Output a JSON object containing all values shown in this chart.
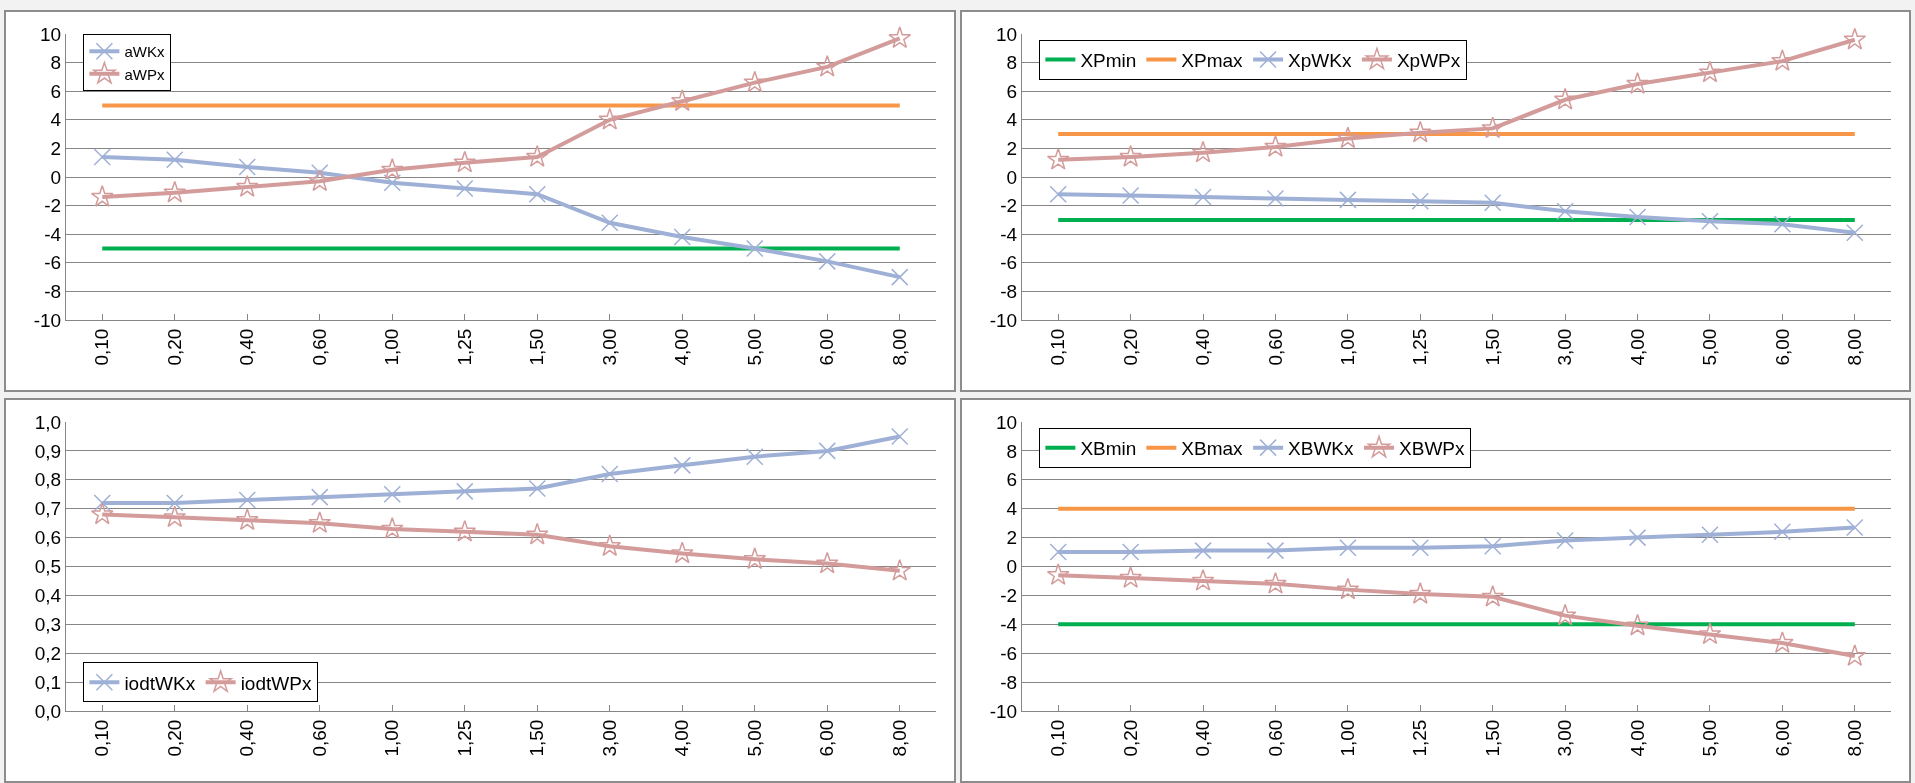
{
  "chart_data": [
    {
      "type": "line",
      "categories": [
        "0,10",
        "0,20",
        "0,40",
        "0,60",
        "1,00",
        "1,25",
        "1,50",
        "3,00",
        "4,00",
        "5,00",
        "6,00",
        "8,00"
      ],
      "ylim": [
        -10,
        10
      ],
      "yticks": [
        -10,
        -8,
        -6,
        -4,
        -2,
        0,
        2,
        4,
        6,
        8,
        10
      ],
      "grid": "y",
      "legend": "top left",
      "line_style": "solid",
      "series": [
        {
          "name": "aWKx",
          "color": "#9fb0d6",
          "marker": "cross",
          "values": [
            1.4,
            1.2,
            0.7,
            0.3,
            -0.4,
            -0.8,
            -1.2,
            -3.2,
            -4.2,
            -5.0,
            -5.9,
            -7.0
          ]
        },
        {
          "name": "aWPx",
          "color": "#d49b9b",
          "marker": "star",
          "values": [
            -1.4,
            -1.1,
            -0.7,
            -0.3,
            0.5,
            1.0,
            1.4,
            4.0,
            5.3,
            6.6,
            7.7,
            9.7
          ]
        },
        {
          "color": "#00b050",
          "marker": "none",
          "values": [
            -5,
            -5,
            -5,
            -5,
            -5,
            -5,
            -5,
            -5,
            -5,
            -5,
            -5,
            -5
          ]
        },
        {
          "color": "#f79646",
          "marker": "none",
          "values": [
            5,
            5,
            5,
            5,
            5,
            5,
            5,
            5,
            5,
            5,
            5,
            5
          ]
        }
      ]
    },
    {
      "type": "line",
      "categories": [
        "0,10",
        "0,20",
        "0,40",
        "0,60",
        "1,00",
        "1,25",
        "1,50",
        "3,00",
        "4,00",
        "5,00",
        "6,00",
        "8,00"
      ],
      "ylim": [
        -10,
        10
      ],
      "yticks": [
        -10,
        -8,
        -6,
        -4,
        -2,
        0,
        2,
        4,
        6,
        8,
        10
      ],
      "grid": "y",
      "legend": "top left",
      "line_style": "solid",
      "series": [
        {
          "name": "XpWKx",
          "color": "#9fb0d6",
          "marker": "cross",
          "values": [
            -1.2,
            -1.3,
            -1.4,
            -1.5,
            -1.6,
            -1.7,
            -1.8,
            -2.4,
            -2.8,
            -3.1,
            -3.3,
            -3.9
          ]
        },
        {
          "name": "XpWPx",
          "color": "#d49b9b",
          "marker": "star",
          "values": [
            1.2,
            1.4,
            1.7,
            2.1,
            2.7,
            3.1,
            3.4,
            5.4,
            6.5,
            7.3,
            8.1,
            9.6
          ]
        },
        {
          "name": "XPmin",
          "color": "#00b050",
          "marker": "none",
          "values": [
            -3,
            -3,
            -3,
            -3,
            -3,
            -3,
            -3,
            -3,
            -3,
            -3,
            -3,
            -3
          ]
        },
        {
          "name": "XPmax",
          "color": "#f79646",
          "marker": "none",
          "values": [
            3,
            3,
            3,
            3,
            3,
            3,
            3,
            3,
            3,
            3,
            3,
            3
          ]
        }
      ]
    },
    {
      "type": "line",
      "categories": [
        "0,10",
        "0,20",
        "0,40",
        "0,60",
        "1,00",
        "1,25",
        "1,50",
        "3,00",
        "4,00",
        "5,00",
        "6,00",
        "8,00"
      ],
      "ylim": [
        0,
        1
      ],
      "yticks": [
        {
          "value": 0,
          "label": "0,0"
        },
        {
          "value": 0.1,
          "label": "0,1"
        },
        {
          "value": 0.2,
          "label": "0,2"
        },
        {
          "value": 0.3,
          "label": "0,3"
        },
        {
          "value": 0.4,
          "label": "0,4"
        },
        {
          "value": 0.5,
          "label": "0,5"
        },
        {
          "value": 0.6,
          "label": "0,6"
        },
        {
          "value": 0.7,
          "label": "0,7"
        },
        {
          "value": 0.8,
          "label": "0,8"
        },
        {
          "value": 0.9,
          "label": "0,9"
        },
        {
          "value": 1,
          "label": "1,0"
        }
      ],
      "grid": "y",
      "legend": "bottom left",
      "line_style": "solid",
      "series": [
        {
          "name": "iodtWKx",
          "color": "#9fb0d6",
          "marker": "cross",
          "values": [
            0.72,
            0.72,
            0.73,
            0.74,
            0.75,
            0.76,
            0.77,
            0.82,
            0.85,
            0.88,
            0.9,
            0.95
          ]
        },
        {
          "name": "iodtWPx",
          "color": "#d49b9b",
          "marker": "star",
          "values": [
            0.68,
            0.67,
            0.66,
            0.65,
            0.63,
            0.62,
            0.61,
            0.57,
            0.545,
            0.525,
            0.51,
            0.485
          ]
        }
      ]
    },
    {
      "type": "line",
      "categories": [
        "0,10",
        "0,20",
        "0,40",
        "0,60",
        "1,00",
        "1,25",
        "1,50",
        "3,00",
        "4,00",
        "5,00",
        "6,00",
        "8,00"
      ],
      "ylim": [
        -10,
        10
      ],
      "yticks": [
        -10,
        -8,
        -6,
        -4,
        -2,
        0,
        2,
        4,
        6,
        8,
        10
      ],
      "grid": "y",
      "legend": "top left",
      "line_style": "solid",
      "series": [
        {
          "name": "XBWKx",
          "color": "#9fb0d6",
          "marker": "cross",
          "values": [
            1.0,
            1.0,
            1.1,
            1.1,
            1.3,
            1.3,
            1.4,
            1.8,
            2.0,
            2.2,
            2.4,
            2.7
          ]
        },
        {
          "name": "XBWPx",
          "color": "#d49b9b",
          "marker": "star",
          "values": [
            -0.6,
            -0.8,
            -1.0,
            -1.2,
            -1.6,
            -1.9,
            -2.1,
            -3.4,
            -4.1,
            -4.7,
            -5.3,
            -6.2
          ]
        },
        {
          "name": "XBmin",
          "color": "#00b050",
          "marker": "none",
          "values": [
            -4,
            -4,
            -4,
            -4,
            -4,
            -4,
            -4,
            -4,
            -4,
            -4,
            -4,
            -4
          ]
        },
        {
          "name": "XBmax",
          "color": "#f79646",
          "marker": "none",
          "values": [
            4,
            4,
            4,
            4,
            4,
            4,
            4,
            4,
            4,
            4,
            4,
            4
          ]
        }
      ]
    }
  ]
}
